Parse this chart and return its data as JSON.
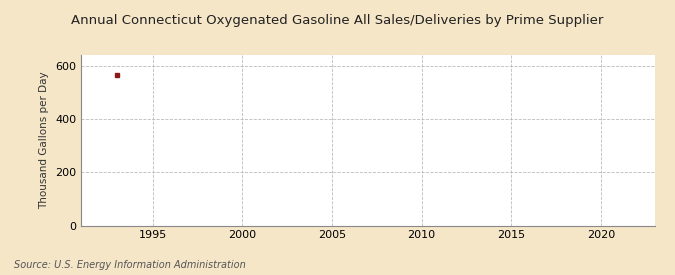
{
  "title": "Annual Connecticut Oxygenated Gasoline All Sales/Deliveries by Prime Supplier",
  "ylabel": "Thousand Gallons per Day",
  "source": "Source: U.S. Energy Information Administration",
  "background_color": "#f5e6c8",
  "plot_background_color": "#ffffff",
  "data_x": [
    1993
  ],
  "data_y": [
    564
  ],
  "data_color": "#8b1a1a",
  "marker": "s",
  "marker_size": 3,
  "xlim": [
    1991,
    2023
  ],
  "ylim": [
    0,
    640
  ],
  "yticks": [
    0,
    200,
    400,
    600
  ],
  "xticks": [
    1995,
    2000,
    2005,
    2010,
    2015,
    2020
  ],
  "grid_color": "#bbbbbb",
  "grid_linestyle": "--",
  "title_fontsize": 9.5,
  "label_fontsize": 7.5,
  "tick_fontsize": 8,
  "source_fontsize": 7
}
